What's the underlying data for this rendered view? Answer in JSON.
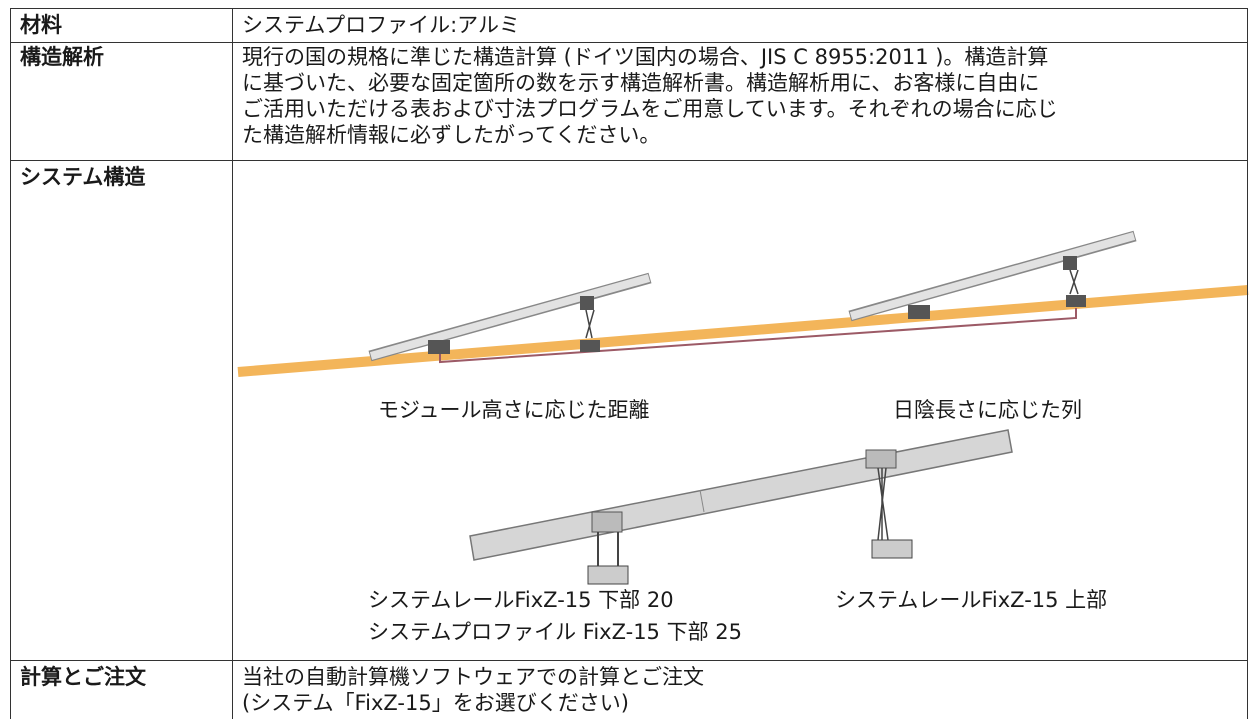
{
  "table": {
    "rows": [
      {
        "label": "材料",
        "content": [
          "システムプロファイル:アルミ"
        ]
      },
      {
        "label": "構造解析",
        "content": [
          "現行の国の規格に準じた構造計算 (ドイツ国内の場合、JIS C 8955:2011 )。構造計算",
          "に基づいた、必要な固定箇所の数を示す構造解析書。構造解析用に、お客様に自由に",
          "ご活用いただける表および寸法プログラムをご用意しています。それぞれの場合に応じ",
          "た構造解析情報に必ずしたがってください。"
        ]
      },
      {
        "label": "システム構造",
        "figure": {
          "top_captions": [
            "モジュール高さに応じた距離",
            "日陰長さに応じた列"
          ],
          "bottom_captions": [
            [
              "システムレールFixZ-15 下部 20",
              "システムプロファイル FixZ-15 下部 25"
            ],
            [
              "システムレールFixZ-15 上部"
            ]
          ]
        }
      },
      {
        "label": "計算とご注文",
        "content": [
          "当社の自動計算機ソフトウェアでの計算とご注文",
          "(システム「FixZ-15」をお選びください)"
        ]
      }
    ]
  }
}
